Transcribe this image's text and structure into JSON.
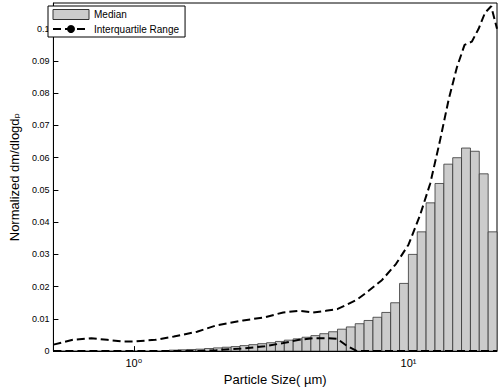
{
  "chart_data": {
    "type": "histogram",
    "x_label": "Particle Size( µm)",
    "y_label": "Normalized dm/dlogdₚ",
    "log": "x",
    "grid": false,
    "legend": "upper left",
    "xlim": [
      0.51,
      21
    ],
    "xticks": [
      {
        "value": 1,
        "label": "10⁰"
      },
      {
        "value": 10,
        "label": "10¹"
      }
    ],
    "ylim": [
      0,
      0.108
    ],
    "yticks": [
      0,
      0.01,
      0.02,
      0.03,
      0.04,
      0.05,
      0.06,
      0.07,
      0.08,
      0.09,
      0.1
    ],
    "series": [
      {
        "name": "Median",
        "type": "bar",
        "color": "#cccccc",
        "bins": [
          1.345,
          1.449,
          1.56,
          1.681,
          1.81,
          1.95,
          2.1,
          2.262,
          2.436,
          2.624,
          2.827,
          3.045,
          3.279,
          3.532,
          3.805,
          4.098,
          4.414,
          4.755,
          5.121,
          5.516,
          5.942,
          6.4,
          6.893,
          7.425,
          7.997,
          8.614,
          9.278,
          9.993,
          10.76,
          11.59,
          12.49,
          13.45,
          14.49,
          15.6,
          16.81,
          18.1,
          19.5,
          21.0
        ],
        "values": [
          0.0003,
          0.0004,
          0.0005,
          0.0006,
          0.0008,
          0.001,
          0.0012,
          0.0014,
          0.0017,
          0.002,
          0.0023,
          0.0026,
          0.003,
          0.0034,
          0.0038,
          0.0043,
          0.0048,
          0.0054,
          0.006,
          0.0068,
          0.0075,
          0.0085,
          0.0095,
          0.0105,
          0.012,
          0.015,
          0.021,
          0.03,
          0.037,
          0.046,
          0.052,
          0.058,
          0.06,
          0.063,
          0.062,
          0.055,
          0.037
        ]
      },
      {
        "name": "Interquartile Range",
        "type": "line",
        "color": "#000000",
        "line_style": "dashed",
        "x": [
          0.51,
          0.6,
          0.7,
          0.8,
          0.9,
          1,
          1.2,
          1.4,
          1.7,
          2,
          2.5,
          3,
          3.5,
          4,
          4.5,
          5,
          5.5,
          6,
          6.5,
          7,
          8,
          9,
          10,
          11,
          12,
          13,
          14,
          15,
          16,
          17,
          18,
          19,
          20,
          21
        ],
        "upper": [
          0.002,
          0.0035,
          0.004,
          0.0035,
          0.003,
          0.003,
          0.0035,
          0.0045,
          0.006,
          0.008,
          0.0095,
          0.0105,
          0.012,
          0.0125,
          0.012,
          0.0125,
          0.013,
          0.0145,
          0.016,
          0.018,
          0.022,
          0.027,
          0.033,
          0.042,
          0.052,
          0.065,
          0.078,
          0.088,
          0.095,
          0.096,
          0.1,
          0.105,
          0.107,
          0.1
        ],
        "lower": [
          0,
          0,
          0,
          0,
          0,
          0,
          0,
          0,
          0,
          0.0003,
          0.0008,
          0.0015,
          0.0025,
          0.0035,
          0.004,
          0.004,
          0.0038,
          0.0015,
          0,
          0,
          0,
          0,
          0,
          0,
          0,
          0,
          0,
          0,
          0,
          0,
          0,
          0,
          0,
          0
        ]
      }
    ]
  }
}
